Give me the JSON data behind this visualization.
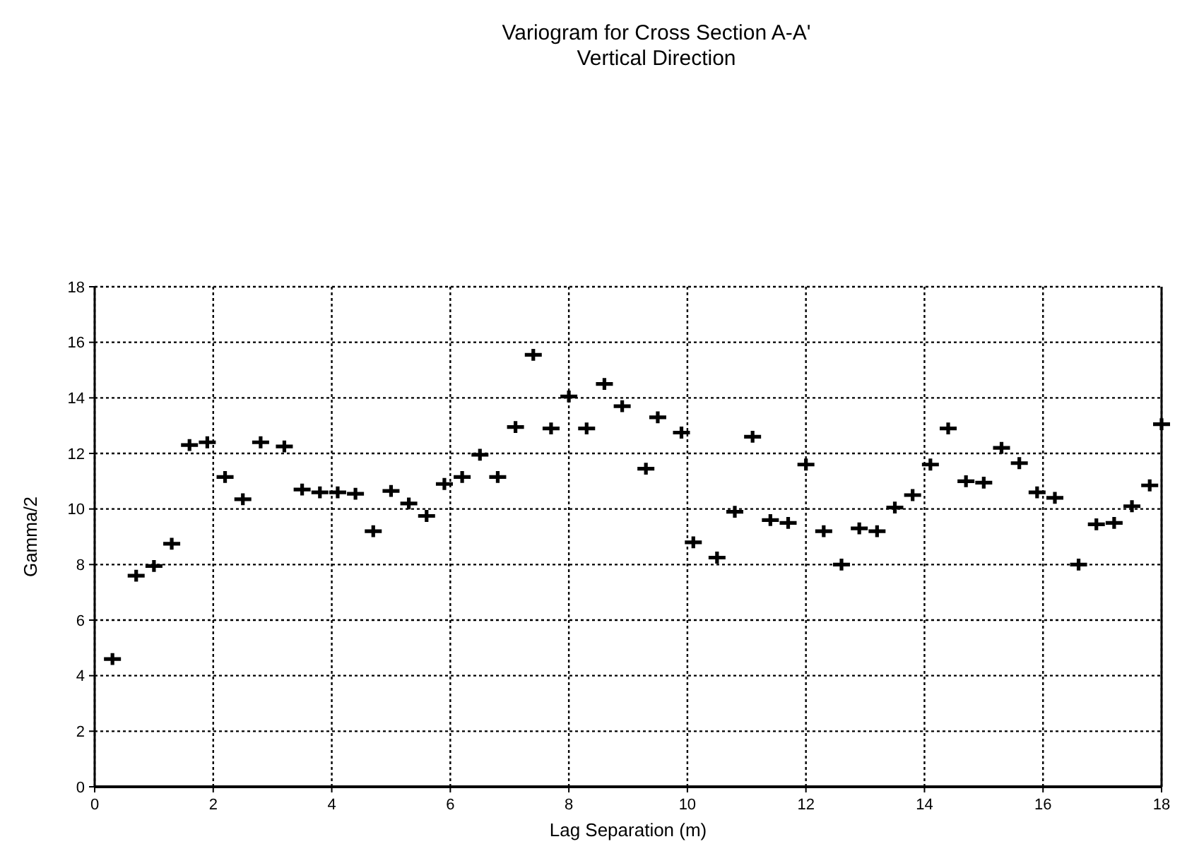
{
  "chart_data": {
    "type": "scatter",
    "title": "Variogram for Cross Section A-A'",
    "subtitle": "Vertical Direction",
    "xlabel": "Lag Separation (m)",
    "ylabel": "Gamma/2",
    "x": [
      0.3,
      0.7,
      1.0,
      1.3,
      1.6,
      1.9,
      2.2,
      2.5,
      2.8,
      3.2,
      3.5,
      3.8,
      4.1,
      4.4,
      4.7,
      5.0,
      5.3,
      5.6,
      5.9,
      6.2,
      6.5,
      6.8,
      7.1,
      7.4,
      7.7,
      8.0,
      8.3,
      8.6,
      8.9,
      9.3,
      9.5,
      9.9,
      10.1,
      10.5,
      10.8,
      11.1,
      11.4,
      11.7,
      12.0,
      12.3,
      12.6,
      12.9,
      13.2,
      13.5,
      13.8,
      14.1,
      14.4,
      14.7,
      15.0,
      15.3,
      15.6,
      15.9,
      16.2,
      16.6,
      16.9,
      17.2,
      17.5,
      17.8,
      18.0
    ],
    "values": [
      4.6,
      7.6,
      7.95,
      8.75,
      12.3,
      12.4,
      11.15,
      10.35,
      12.4,
      12.25,
      10.7,
      10.6,
      10.6,
      10.55,
      9.2,
      10.65,
      10.2,
      9.75,
      10.9,
      11.15,
      11.95,
      11.15,
      12.95,
      15.55,
      12.9,
      14.05,
      12.9,
      14.5,
      13.7,
      11.45,
      13.3,
      12.75,
      8.8,
      8.25,
      9.9,
      12.6,
      9.6,
      9.5,
      11.6,
      9.2,
      8.0,
      9.3,
      9.2,
      10.05,
      10.5,
      11.6,
      12.9,
      11.0,
      10.95,
      12.2,
      11.65,
      10.6,
      10.4,
      8.0,
      9.45,
      9.5,
      10.1,
      10.85,
      13.05
    ],
    "color": "#000000",
    "marker": "cross",
    "xlim": [
      0,
      18
    ],
    "ylim": [
      0,
      18
    ],
    "xticks": [
      0,
      2,
      4,
      6,
      8,
      10,
      12,
      14,
      16,
      18
    ],
    "yticks": [
      0,
      2,
      4,
      6,
      8,
      10,
      12,
      14,
      16,
      18
    ],
    "grid": true
  }
}
